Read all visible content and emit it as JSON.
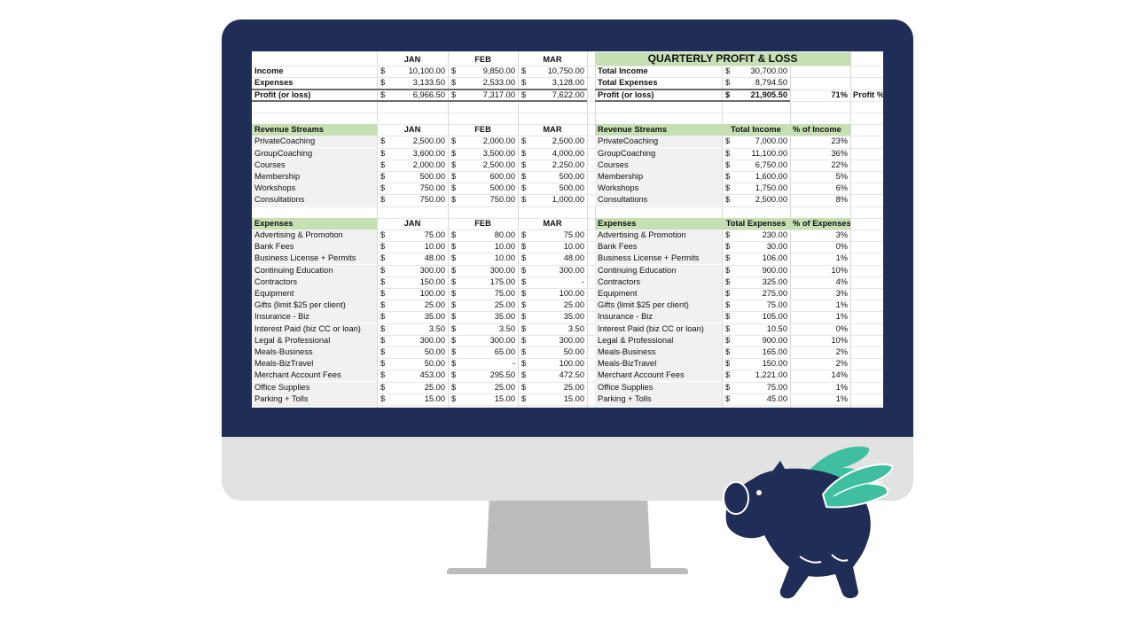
{
  "summary": {
    "title": "QUARTERLY PROFIT & LOSS",
    "months": [
      "JAN",
      "FEB",
      "MAR"
    ],
    "currency_symbol": "$",
    "rows": [
      {
        "label": "Income",
        "jan": "10,100.00",
        "feb": "9,850.00",
        "mar": "10,750.00",
        "total_label": "Total Income",
        "total": "30,700.00",
        "pct": ""
      },
      {
        "label": "Expenses",
        "jan": "3,133.50",
        "feb": "2,533.00",
        "mar": "3,128.00",
        "total_label": "Total Expenses",
        "total": "8,794.50",
        "pct": ""
      },
      {
        "label": "Profit (or loss)",
        "jan": "6,966.50",
        "feb": "7,317.00",
        "mar": "7,622.00",
        "total_label": "Profit (or loss)",
        "total": "21,905.50",
        "pct": "71%",
        "pct_label": "Profit %"
      }
    ]
  },
  "revenue": {
    "header": "Revenue Streams",
    "col_total": "Total Income",
    "col_pct": "% of Income",
    "rows": [
      {
        "label": "PrivateCoaching",
        "jan": "2,500.00",
        "feb": "2,000.00",
        "mar": "2,500.00",
        "total": "7,000.00",
        "pct": "23%"
      },
      {
        "label": "GroupCoaching",
        "jan": "3,600.00",
        "feb": "3,500.00",
        "mar": "4,000.00",
        "total": "11,100.00",
        "pct": "36%"
      },
      {
        "label": "Courses",
        "jan": "2,000.00",
        "feb": "2,500.00",
        "mar": "2,250.00",
        "total": "6,750.00",
        "pct": "22%"
      },
      {
        "label": "Membership",
        "jan": "500.00",
        "feb": "600.00",
        "mar": "500.00",
        "total": "1,600.00",
        "pct": "5%"
      },
      {
        "label": "Workshops",
        "jan": "750.00",
        "feb": "500.00",
        "mar": "500.00",
        "total": "1,750.00",
        "pct": "6%"
      },
      {
        "label": "Consultations",
        "jan": "750.00",
        "feb": "750.00",
        "mar": "1,000.00",
        "total": "2,500.00",
        "pct": "8%"
      }
    ]
  },
  "expenses": {
    "header": "Expenses",
    "col_total": "Total Expenses",
    "col_pct": "% of Expenses",
    "rows": [
      {
        "label": "Advertising & Promotion",
        "jan": "75.00",
        "feb": "80.00",
        "mar": "75.00",
        "total": "230.00",
        "pct": "3%"
      },
      {
        "label": "Bank Fees",
        "jan": "10.00",
        "feb": "10.00",
        "mar": "10.00",
        "total": "30.00",
        "pct": "0%"
      },
      {
        "label": "Business License + Permits",
        "jan": "48.00",
        "feb": "10.00",
        "mar": "48.00",
        "total": "106.00",
        "pct": "1%"
      },
      {
        "label": "Continuing Education",
        "jan": "300.00",
        "feb": "300.00",
        "mar": "300.00",
        "total": "900.00",
        "pct": "10%"
      },
      {
        "label": "Contractors",
        "jan": "150.00",
        "feb": "175.00",
        "mar": "-",
        "total": "325.00",
        "pct": "4%"
      },
      {
        "label": "Equipment",
        "jan": "100.00",
        "feb": "75.00",
        "mar": "100.00",
        "total": "275.00",
        "pct": "3%"
      },
      {
        "label": "Gifts (limit $25 per client)",
        "jan": "25.00",
        "feb": "25.00",
        "mar": "25.00",
        "total": "75.00",
        "pct": "1%"
      },
      {
        "label": "Insurance - Biz",
        "jan": "35.00",
        "feb": "35.00",
        "mar": "35.00",
        "total": "105.00",
        "pct": "1%"
      },
      {
        "label": "Interest Paid (biz CC or loan)",
        "jan": "3.50",
        "feb": "3.50",
        "mar": "3.50",
        "total": "10.50",
        "pct": "0%"
      },
      {
        "label": "Legal & Professional",
        "jan": "300.00",
        "feb": "300.00",
        "mar": "300.00",
        "total": "900.00",
        "pct": "10%"
      },
      {
        "label": "Meals-Business",
        "jan": "50.00",
        "feb": "65.00",
        "mar": "50.00",
        "total": "165.00",
        "pct": "2%"
      },
      {
        "label": "Meals-BizTravel",
        "jan": "50.00",
        "feb": "-",
        "mar": "100.00",
        "total": "150.00",
        "pct": "2%"
      },
      {
        "label": "Merchant Account Fees",
        "jan": "453.00",
        "feb": "295.50",
        "mar": "472.50",
        "total": "1,221.00",
        "pct": "14%"
      },
      {
        "label": "Office Supplies",
        "jan": "25.00",
        "feb": "25.00",
        "mar": "25.00",
        "total": "75.00",
        "pct": "1%"
      },
      {
        "label": "Parking + Tolls",
        "jan": "15.00",
        "feb": "15.00",
        "mar": "15.00",
        "total": "45.00",
        "pct": "1%"
      }
    ]
  },
  "colors": {
    "monitor_frame": "#1f2d57",
    "monitor_chin": "#e2e2e2",
    "stand": "#bcbcbc",
    "header_green": "#c6e0b4",
    "label_gray": "#f1f1f1",
    "pig_body": "#1f2d57",
    "pig_wing": "#3fbfa0"
  },
  "icons": [
    "flying-piggy-bank-icon"
  ]
}
